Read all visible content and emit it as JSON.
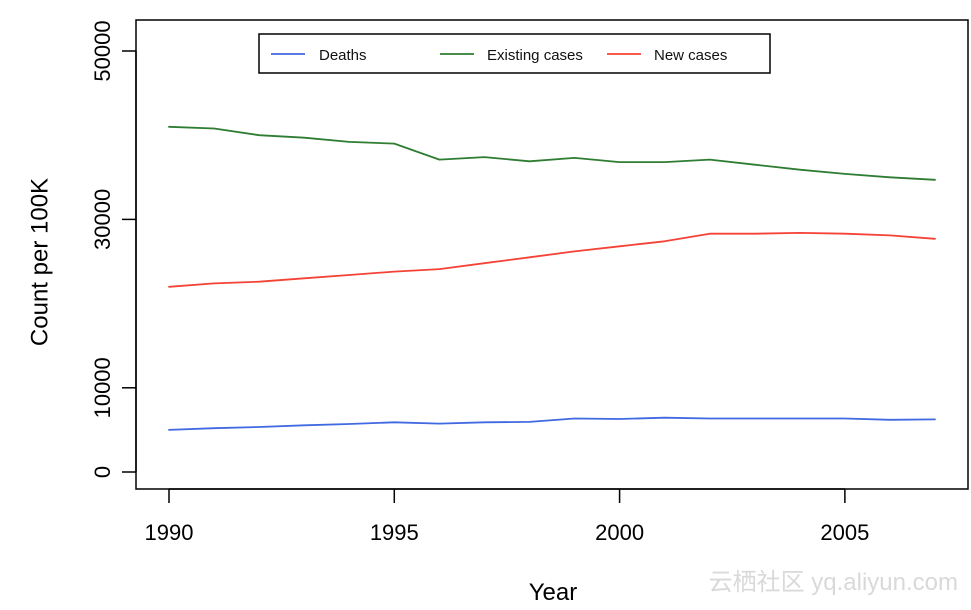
{
  "chart_data": {
    "type": "line",
    "x": [
      1990,
      1991,
      1992,
      1993,
      1994,
      1995,
      1996,
      1997,
      1998,
      1999,
      2000,
      2001,
      2002,
      2003,
      2004,
      2005,
      2006,
      2007
    ],
    "series": [
      {
        "name": "Deaths",
        "color": "#4169e1",
        "values": [
          5000,
          5200,
          5350,
          5550,
          5700,
          5900,
          5750,
          5900,
          5950,
          6350,
          6300,
          6450,
          6350,
          6350,
          6350,
          6350,
          6200,
          6250
        ]
      },
      {
        "name": "Existing cases",
        "color": "#2e7d32",
        "values": [
          41000,
          40800,
          40000,
          39700,
          39200,
          39000,
          37100,
          37400,
          36900,
          37300,
          36800,
          36800,
          37100,
          36500,
          35900,
          35400,
          35000,
          34700
        ]
      },
      {
        "name": "New cases",
        "color": "#f44336",
        "values": [
          22000,
          22400,
          22600,
          23000,
          23400,
          23800,
          24100,
          24800,
          25500,
          26200,
          26800,
          27400,
          28300,
          28300,
          28400,
          28300,
          28100,
          27700
        ]
      }
    ],
    "xlabel": "Year",
    "ylabel": "Count per 100K",
    "xlim": [
      1990,
      2007
    ],
    "ylim": [
      0,
      50000
    ],
    "x_ticks": [
      1990,
      1995,
      2000,
      2005
    ],
    "y_ticks": [
      0,
      10000,
      30000,
      50000
    ],
    "grid": false,
    "legend_placement": "top-center"
  },
  "watermark": "云栖社区 yq.aliyun.com"
}
